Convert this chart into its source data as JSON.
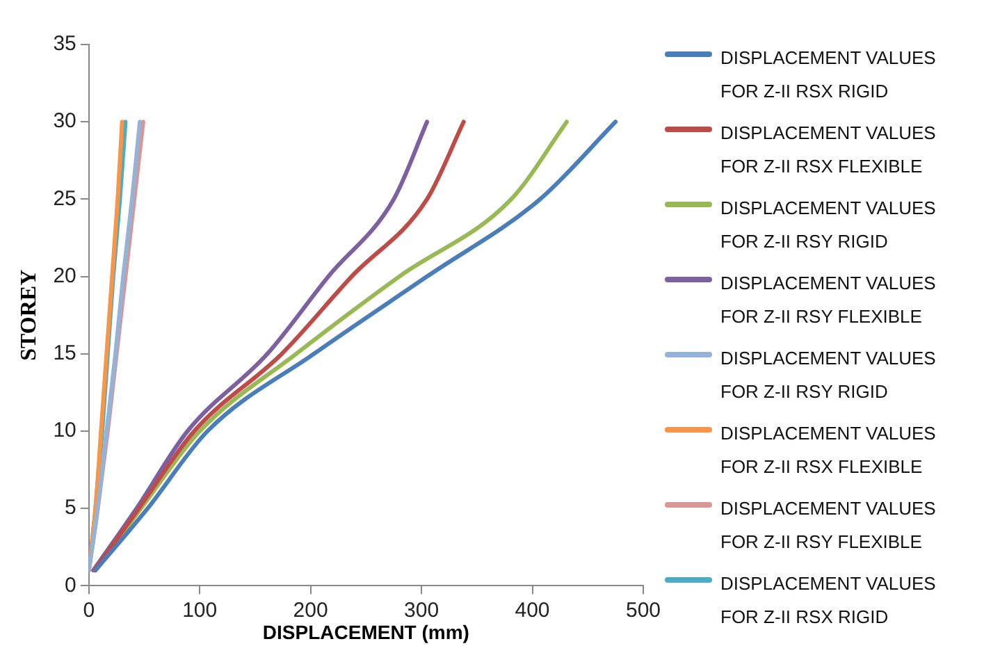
{
  "chart_data": {
    "type": "line",
    "xlabel": "DISPLACEMENT (mm)",
    "ylabel": "STOREY",
    "xlim": [
      0,
      500
    ],
    "xticks": [
      0,
      100,
      200,
      300,
      400,
      500
    ],
    "ylim": [
      0,
      35
    ],
    "yticks": [
      0,
      5,
      10,
      15,
      20,
      25,
      30,
      35
    ],
    "grid": false,
    "legend": "right",
    "marker": "none",
    "line_style": "solid",
    "series": [
      {
        "name": "DISPLACEMENT VALUES FOR Z-II RSX RIGID",
        "color": "#4a7ebb",
        "x": [
          6,
          53,
          107,
          203,
          305,
          407,
          475
        ],
        "values": [
          1,
          5,
          10,
          15,
          20,
          25,
          30
        ]
      },
      {
        "name": "DISPLACEMENT VALUES FOR Z-II RSX FLEXIBLE",
        "color": "#be4b48",
        "x": [
          5,
          45,
          95,
          174,
          237,
          305,
          338
        ],
        "values": [
          1,
          5,
          10,
          15,
          20,
          25,
          30
        ]
      },
      {
        "name": "DISPLACEMENT VALUES FOR Z-II RSY RIGID",
        "color": "#98b954",
        "x": [
          6,
          47,
          100,
          187,
          280,
          381,
          431
        ],
        "values": [
          1,
          5,
          10,
          15,
          20,
          25,
          30
        ]
      },
      {
        "name": "DISPLACEMENT VALUES FOR Z-II RSY FLEXIBLE",
        "color": "#7d60a0",
        "x": [
          4,
          43,
          89,
          161,
          216,
          275,
          305
        ],
        "values": [
          1,
          5,
          10,
          15,
          20,
          25,
          30
        ]
      },
      {
        "name": "DISPLACEMENT VALUES FOR Z-II RSY RIGID",
        "color": "#95b3d7",
        "x": [
          0,
          8,
          16,
          24,
          31,
          39,
          46
        ],
        "values": [
          1,
          5,
          10,
          15,
          20,
          25,
          30
        ]
      },
      {
        "name": "DISPLACEMENT VALUES FOR Z-II RSX FLEXIBLE",
        "color": "#f79646",
        "x": [
          0,
          6,
          11,
          16,
          21,
          26,
          30
        ],
        "values": [
          1,
          5,
          10,
          15,
          20,
          25,
          30
        ]
      },
      {
        "name": "DISPLACEMENT VALUES FOR Z-II RSY FLEXIBLE",
        "color": "#d99694",
        "x": [
          0,
          8,
          17,
          25,
          33,
          41,
          49
        ],
        "values": [
          1,
          5,
          10,
          15,
          20,
          25,
          30
        ]
      },
      {
        "name": "DISPLACEMENT VALUES FOR Z-II RSX RIGID",
        "color": "#4bacc6",
        "x": [
          0,
          6,
          12,
          17,
          22,
          28,
          33
        ],
        "values": [
          1,
          5,
          10,
          15,
          20,
          25,
          30
        ]
      }
    ]
  }
}
